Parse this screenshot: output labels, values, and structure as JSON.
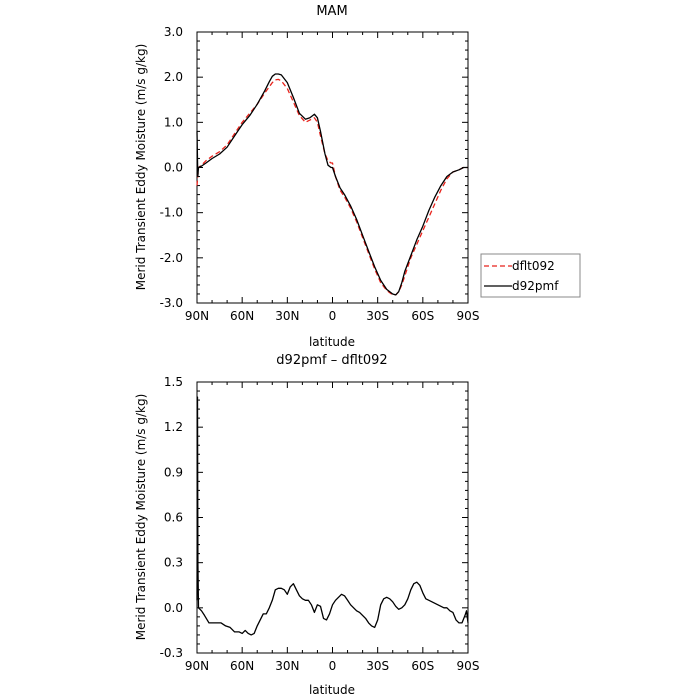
{
  "chart_data": [
    {
      "type": "line",
      "title": "MAM",
      "xlabel": "latitude",
      "ylabel": "Merid Transient Eddy Moisture  (m/s g/kg)",
      "xlim": [
        90,
        -90
      ],
      "ylim": [
        -3.0,
        3.0
      ],
      "x_tick_labels": [
        "90N",
        "60N",
        "30N",
        "0",
        "30S",
        "60S",
        "90S"
      ],
      "y_tick_labels": [
        "-3.0",
        "-2.0",
        "-1.0",
        "0.0",
        "1.0",
        "2.0",
        "3.0"
      ],
      "legend_position": "right",
      "series": [
        {
          "name": "dflt092",
          "color": "#e8221b",
          "dash": "dashed",
          "x": [
            90,
            89,
            87,
            84,
            80,
            75,
            70,
            65,
            60,
            55,
            50,
            45,
            40,
            38,
            36,
            34,
            30,
            26,
            22,
            18,
            15,
            12,
            10,
            8,
            5,
            3,
            1,
            0,
            -2,
            -5,
            -8,
            -12,
            -16,
            -20,
            -24,
            -28,
            -32,
            -36,
            -40,
            -42,
            -44,
            -46,
            -48,
            -52,
            -56,
            -60,
            -64,
            -68,
            -72,
            -76,
            -80,
            -84,
            -87,
            -88,
            -90
          ],
          "y": [
            -0.4,
            0.0,
            0.05,
            0.15,
            0.25,
            0.35,
            0.5,
            0.75,
            1.0,
            1.2,
            1.4,
            1.65,
            1.88,
            1.94,
            1.95,
            1.92,
            1.75,
            1.45,
            1.15,
            1.0,
            1.05,
            1.1,
            1.0,
            0.7,
            0.3,
            0.15,
            0.1,
            0.1,
            -0.2,
            -0.5,
            -0.65,
            -0.9,
            -1.2,
            -1.55,
            -1.9,
            -2.25,
            -2.55,
            -2.72,
            -2.82,
            -2.82,
            -2.75,
            -2.6,
            -2.4,
            -2.0,
            -1.7,
            -1.4,
            -1.1,
            -0.8,
            -0.5,
            -0.25,
            -0.1,
            -0.05,
            0.0,
            0.0,
            0.0
          ]
        },
        {
          "name": "d92pmf",
          "color": "#000000",
          "dash": "solid",
          "x": [
            90,
            89.5,
            89,
            87,
            84,
            80,
            75,
            70,
            65,
            60,
            55,
            50,
            45,
            42,
            40,
            38,
            36,
            34,
            30,
            26,
            22,
            18,
            15,
            12,
            10,
            8,
            5,
            3,
            1,
            0,
            -2,
            -5,
            -8,
            -12,
            -16,
            -20,
            -24,
            -28,
            -32,
            -36,
            -40,
            -42,
            -44,
            -46,
            -48,
            -52,
            -56,
            -60,
            -64,
            -68,
            -72,
            -76,
            -80,
            -84,
            -87,
            -88,
            -90
          ],
          "y": [
            0.8,
            -0.2,
            0.0,
            0.03,
            0.1,
            0.2,
            0.3,
            0.45,
            0.7,
            0.95,
            1.15,
            1.4,
            1.7,
            1.9,
            2.02,
            2.07,
            2.07,
            2.05,
            1.88,
            1.55,
            1.2,
            1.07,
            1.1,
            1.18,
            1.1,
            0.8,
            0.3,
            0.05,
            0.0,
            0.0,
            -0.2,
            -0.45,
            -0.6,
            -0.85,
            -1.15,
            -1.5,
            -1.85,
            -2.2,
            -2.5,
            -2.7,
            -2.8,
            -2.82,
            -2.75,
            -2.55,
            -2.3,
            -1.95,
            -1.6,
            -1.3,
            -0.95,
            -0.65,
            -0.4,
            -0.2,
            -0.1,
            -0.05,
            0.0,
            0.0,
            0.0
          ]
        }
      ]
    },
    {
      "type": "line",
      "title": "d92pmf – dflt092",
      "xlabel": "latitude",
      "ylabel": "Merid Transient Eddy Moisture  (m/s g/kg)",
      "xlim": [
        90,
        -90
      ],
      "ylim": [
        -0.3,
        1.5
      ],
      "x_tick_labels": [
        "90N",
        "60N",
        "30N",
        "0",
        "30S",
        "60S",
        "90S"
      ],
      "y_tick_labels": [
        "-0.3",
        "0.0",
        "0.3",
        "0.6",
        "0.9",
        "1.2",
        "1.5"
      ],
      "series": [
        {
          "color": "#000000",
          "dash": "solid",
          "x": [
            90,
            89.7,
            89.4,
            89,
            87,
            85,
            82,
            80,
            77,
            74,
            71,
            68,
            65,
            62,
            60,
            58,
            56,
            54,
            52,
            50,
            48,
            46,
            44,
            42,
            40,
            38,
            36,
            34,
            32,
            30,
            28,
            26,
            24,
            22,
            20,
            18,
            16,
            14,
            12,
            10,
            8,
            6,
            4,
            2,
            0,
            -2,
            -4,
            -6,
            -8,
            -10,
            -12,
            -14,
            -16,
            -18,
            -20,
            -22,
            -24,
            -26,
            -28,
            -30,
            -32,
            -34,
            -36,
            -38,
            -40,
            -42,
            -44,
            -46,
            -48,
            -50,
            -52,
            -54,
            -56,
            -58,
            -60,
            -62,
            -64,
            -66,
            -68,
            -70,
            -72,
            -74,
            -76,
            -78,
            -80,
            -82,
            -84,
            -86,
            -88,
            -89,
            -90
          ],
          "y": [
            0.05,
            1.4,
            0.3,
            0.0,
            -0.02,
            -0.05,
            -0.1,
            -0.1,
            -0.1,
            -0.1,
            -0.12,
            -0.13,
            -0.16,
            -0.16,
            -0.17,
            -0.15,
            -0.17,
            -0.18,
            -0.17,
            -0.12,
            -0.08,
            -0.04,
            -0.04,
            0.0,
            0.05,
            0.12,
            0.13,
            0.13,
            0.12,
            0.09,
            0.14,
            0.16,
            0.12,
            0.08,
            0.06,
            0.05,
            0.05,
            0.02,
            -0.03,
            0.02,
            0.01,
            -0.07,
            -0.08,
            -0.04,
            0.02,
            0.05,
            0.07,
            0.09,
            0.08,
            0.05,
            0.02,
            0.0,
            -0.02,
            -0.03,
            -0.05,
            -0.07,
            -0.1,
            -0.12,
            -0.13,
            -0.08,
            0.02,
            0.06,
            0.07,
            0.06,
            0.04,
            0.01,
            -0.01,
            0.0,
            0.02,
            0.06,
            0.12,
            0.16,
            0.17,
            0.15,
            0.1,
            0.06,
            0.05,
            0.04,
            0.03,
            0.02,
            0.01,
            0.0,
            0.0,
            -0.02,
            -0.03,
            -0.08,
            -0.1,
            -0.1,
            -0.05,
            -0.02,
            -0.1
          ]
        }
      ]
    }
  ]
}
